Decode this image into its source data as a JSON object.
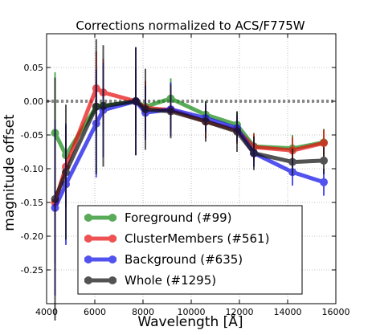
{
  "chart_data": {
    "type": "line",
    "title": "Corrections normalized to ACS/F775W",
    "xlabel": "Wavelength [Å]",
    "ylabel": "magnitude offset",
    "xlim": [
      4000,
      16000
    ],
    "ylim": [
      -0.3,
      0.1
    ],
    "xticks": [
      4000,
      6000,
      8000,
      10000,
      12000,
      14000,
      16000
    ],
    "yticks": [
      -0.25,
      -0.2,
      -0.15,
      -0.1,
      -0.05,
      0.0,
      0.05
    ],
    "ytick_labels": [
      "-0.25",
      "-0.20",
      "-0.15",
      "-0.10",
      "-0.05",
      "0.00",
      "0.05"
    ],
    "grid": true,
    "legend_position": "lower-left",
    "reference_line": {
      "y": 0.0,
      "style": "dotted",
      "color": "#888888"
    },
    "x": [
      4350,
      4800,
      6060,
      6350,
      7700,
      8100,
      9150,
      10600,
      11900,
      12600,
      14200,
      15500
    ],
    "series": [
      {
        "name": "Foreground (#99)",
        "color": "#1a8a1a",
        "values": [
          -0.047,
          -0.08,
          -0.008,
          -0.007,
          0.0,
          -0.008,
          0.004,
          -0.02,
          -0.035,
          -0.067,
          -0.07,
          -0.061
        ],
        "errors": [
          0.09,
          0.04,
          0.04,
          0.04,
          0.04,
          0.03,
          0.03,
          0.02,
          0.02,
          0.02,
          0.02,
          0.02
        ]
      },
      {
        "name": "ClusterMembers (#561)",
        "color": "#e81010",
        "values": [
          -0.15,
          -0.097,
          0.019,
          0.013,
          0.0,
          -0.01,
          -0.013,
          -0.03,
          -0.043,
          -0.068,
          -0.073,
          -0.062
        ],
        "errors": [
          0.09,
          0.06,
          0.055,
          0.05,
          0.05,
          0.04,
          0.03,
          0.025,
          0.02,
          0.02,
          0.02,
          0.02
        ]
      },
      {
        "name": "Background (#635)",
        "color": "#1010e8",
        "values": [
          -0.158,
          -0.123,
          -0.033,
          -0.013,
          0.0,
          -0.017,
          -0.012,
          -0.025,
          -0.04,
          -0.077,
          -0.105,
          -0.12
        ],
        "errors": [
          0.13,
          0.09,
          0.08,
          0.07,
          0.08,
          0.04,
          0.04,
          0.02,
          0.02,
          0.02,
          0.02,
          0.02
        ]
      },
      {
        "name": "Whole (#1295)",
        "color": "#111111",
        "values": [
          -0.145,
          -0.105,
          -0.008,
          -0.007,
          0.0,
          -0.012,
          -0.015,
          -0.03,
          -0.045,
          -0.077,
          -0.09,
          -0.088
        ],
        "errors": [
          0.18,
          0.1,
          0.1,
          0.09,
          0.08,
          0.06,
          0.04,
          0.03,
          0.03,
          0.025,
          0.02,
          0.02
        ]
      }
    ]
  }
}
